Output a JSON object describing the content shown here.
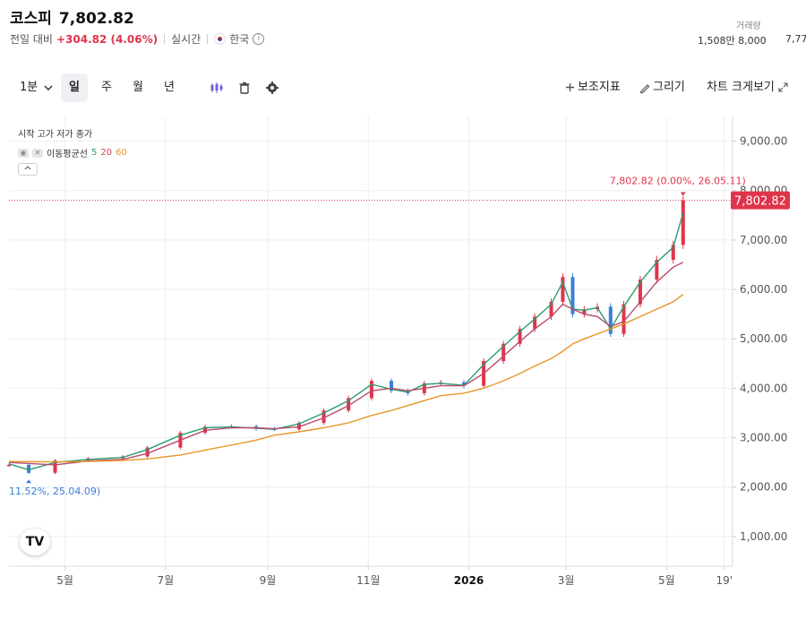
{
  "header": {
    "name": "코스피",
    "price": "7,802.82",
    "change_prefix": "전일 대비",
    "change": "+304.82 (4.06%)",
    "mode": "실시간",
    "market": "한국",
    "info_glyph": "i"
  },
  "volume": {
    "label": "거래량",
    "value1": "1,508만 8,000",
    "value2": "7,77"
  },
  "toolbar": {
    "interval_dropdown": "1분",
    "period_day": "일",
    "period_week": "주",
    "period_month": "월",
    "period_year": "년",
    "indicators": "보조지표",
    "draw": "그리기",
    "fullscreen": "차트 크게보기",
    "icons": [
      "candle-type-icon",
      "trash-icon",
      "settings-gear-icon",
      "plus-icon",
      "pencil-icon",
      "expand-icon"
    ]
  },
  "legend": {
    "ohlc": "시작 고가 저가 종가",
    "ma_label": "이동평균선",
    "ma_5": "5",
    "ma_20": "20",
    "ma_60": "60"
  },
  "colors": {
    "up": "#e0344b",
    "down": "#3b7dd8",
    "ma5": "#2a9d6e",
    "ma20": "#b94a6a",
    "ma60": "#e8962a",
    "price_tag_bg": "#e0344b",
    "grid": "#eeeeee",
    "low_annotation": "#3b7dd8",
    "high_annotation": "#e0344b"
  },
  "chart_data": {
    "type": "line",
    "series": [
      {
        "name": "종가",
        "x": [
          "25.03.28",
          "25.04.09",
          "25.04.25",
          "25.05.15",
          "25.06.05",
          "25.06.20",
          "25.07.10",
          "25.07.25",
          "25.08.10",
          "25.08.25",
          "25.09.05",
          "25.09.20",
          "25.10.05",
          "25.10.20",
          "25.11.03",
          "25.11.15",
          "25.11.25",
          "25.12.05",
          "25.12.15",
          "25.12.29",
          "26.01.10",
          "26.01.22",
          "26.02.01",
          "26.02.10",
          "26.02.20",
          "26.02.27",
          "26.03.05",
          "26.03.12",
          "26.03.20",
          "26.03.28",
          "26.04.05",
          "26.04.15",
          "26.04.25",
          "26.05.05",
          "26.05.11"
        ],
        "y": [
          2450,
          2290,
          2540,
          2580,
          2620,
          2800,
          3100,
          3220,
          3230,
          3180,
          3170,
          3300,
          3550,
          3800,
          4150,
          3950,
          3900,
          4100,
          4120,
          4050,
          4550,
          4900,
          5200,
          5450,
          5750,
          6250,
          5500,
          5600,
          5650,
          5100,
          5700,
          6200,
          6600,
          6900,
          7802.82
        ]
      },
      {
        "name": "5",
        "x": [
          "25.03.28",
          "25.04.09",
          "25.04.25",
          "25.05.15",
          "25.06.05",
          "25.06.20",
          "25.07.10",
          "25.07.25",
          "25.08.10",
          "25.08.25",
          "25.09.05",
          "25.09.20",
          "25.10.05",
          "25.10.20",
          "25.11.03",
          "25.11.15",
          "25.11.25",
          "25.12.05",
          "25.12.15",
          "25.12.29",
          "26.01.10",
          "26.01.22",
          "26.02.01",
          "26.02.10",
          "26.02.20",
          "26.02.27",
          "26.03.05",
          "26.03.12",
          "26.03.20",
          "26.03.28",
          "26.04.05",
          "26.04.15",
          "26.04.25",
          "26.05.05",
          "26.05.11"
        ],
        "y": [
          2470,
          2350,
          2500,
          2560,
          2600,
          2760,
          3050,
          3200,
          3220,
          3190,
          3170,
          3280,
          3500,
          3750,
          4080,
          3980,
          3920,
          4080,
          4100,
          4060,
          4480,
          4850,
          5150,
          5400,
          5700,
          6150,
          5600,
          5580,
          5630,
          5200,
          5650,
          6150,
          6550,
          6850,
          7550
        ]
      },
      {
        "name": "20",
        "x": [
          "25.03.28",
          "25.04.25",
          "25.05.15",
          "25.06.05",
          "25.06.20",
          "25.07.10",
          "25.07.25",
          "25.08.10",
          "25.08.25",
          "25.09.05",
          "25.09.20",
          "25.10.05",
          "25.10.20",
          "25.11.03",
          "25.11.15",
          "25.11.25",
          "25.12.05",
          "25.12.15",
          "25.12.29",
          "26.01.10",
          "26.01.22",
          "26.02.01",
          "26.02.10",
          "26.02.20",
          "26.02.27",
          "26.03.05",
          "26.03.12",
          "26.03.20",
          "26.03.28",
          "26.04.05",
          "26.04.15",
          "26.04.25",
          "26.05.05",
          "26.05.11"
        ],
        "y": [
          2500,
          2450,
          2530,
          2560,
          2680,
          2950,
          3150,
          3200,
          3200,
          3180,
          3220,
          3400,
          3650,
          3950,
          4000,
          3950,
          4000,
          4050,
          4050,
          4300,
          4650,
          4950,
          5200,
          5450,
          5700,
          5600,
          5500,
          5450,
          5250,
          5350,
          5750,
          6150,
          6450,
          6550
        ]
      },
      {
        "name": "60",
        "x": [
          "25.03.28",
          "25.04.25",
          "25.05.15",
          "25.06.05",
          "25.06.20",
          "25.07.10",
          "25.07.25",
          "25.08.10",
          "25.08.25",
          "25.09.05",
          "25.09.20",
          "25.10.05",
          "25.10.20",
          "25.11.03",
          "25.11.15",
          "25.11.25",
          "25.12.05",
          "25.12.15",
          "25.12.29",
          "26.01.10",
          "26.01.22",
          "26.02.01",
          "26.02.10",
          "26.02.20",
          "26.02.27",
          "26.03.05",
          "26.03.12",
          "26.03.20",
          "26.03.28",
          "26.04.05",
          "26.04.15",
          "26.04.25",
          "26.05.05",
          "26.05.11"
        ],
        "y": [
          2520,
          2510,
          2520,
          2540,
          2570,
          2650,
          2750,
          2850,
          2950,
          3050,
          3120,
          3200,
          3300,
          3450,
          3550,
          3650,
          3750,
          3850,
          3900,
          4000,
          4150,
          4300,
          4450,
          4600,
          4750,
          4900,
          5000,
          5100,
          5200,
          5300,
          5450,
          5600,
          5750,
          5900
        ]
      }
    ],
    "ylim": [
      400,
      9500
    ],
    "y_ticks": [
      "9,000.00",
      "8,000.00",
      "7,000.00",
      "6,000.00",
      "5,000.00",
      "4,000.00",
      "3,000.00",
      "2,000.00",
      "1,000.00"
    ],
    "y_tick_values": [
      9000,
      8000,
      7000,
      6000,
      5000,
      4000,
      3000,
      2000,
      1000
    ],
    "x_ticks": [
      "5월",
      "7월",
      "9월",
      "11월",
      "2026",
      "3월",
      "5월",
      "19'"
    ],
    "x_tick_values": [
      "25.05.01",
      "25.07.01",
      "25.09.01",
      "25.11.01",
      "26.01.01",
      "26.03.01",
      "26.05.01",
      "26.06.05"
    ],
    "xlim": [
      "25.03.28",
      "26.06.10"
    ],
    "current_price_tag": "7,802.82",
    "current_price": 7802.82,
    "high_annotation": "7,802.82 (0.00%, 26.05.11)",
    "high_value": 7950,
    "high_date": "26.05.11",
    "low_annotation": "11.52%, 25.04.09)",
    "low_value": 2100,
    "low_date": "25.04.09",
    "grid": true
  }
}
